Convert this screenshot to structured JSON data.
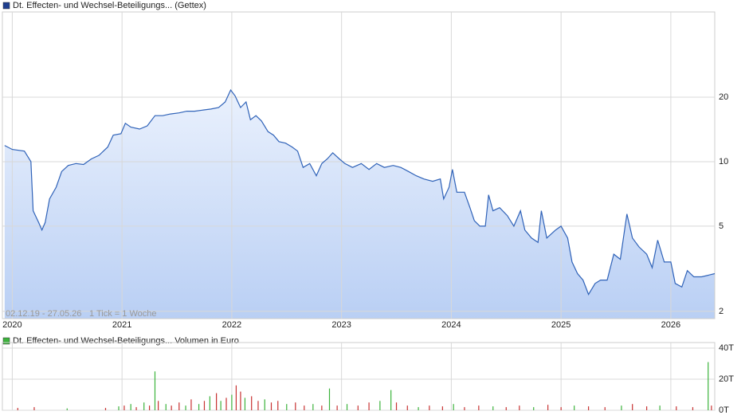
{
  "chart_data": [
    {
      "type": "line",
      "title": "Dt. Effecten- und Wechsel-Beteiligungs... (Gettex)",
      "legend_color": "#1f3f8f",
      "annotations": [
        "02.12.19 - 27.05.26",
        "1 Tick = 1 Woche"
      ],
      "color": "#2f62b8",
      "log_scale": true,
      "grid": true,
      "xlim": [
        2019.91,
        2026.4
      ],
      "xticks": [
        2020,
        2021,
        2022,
        2023,
        2024,
        2025,
        2026
      ],
      "ylim": [
        1.85,
        50
      ],
      "yticks": [
        2,
        5,
        10,
        20
      ],
      "x": [
        2019.93,
        2020.0,
        2020.11,
        2020.17,
        2020.19,
        2020.24,
        2020.27,
        2020.3,
        2020.34,
        2020.4,
        2020.45,
        2020.51,
        2020.58,
        2020.65,
        2020.72,
        2020.79,
        2020.87,
        2020.92,
        2020.99,
        2021.03,
        2021.08,
        2021.16,
        2021.23,
        2021.3,
        2021.37,
        2021.44,
        2021.52,
        2021.59,
        2021.66,
        2021.73,
        2021.81,
        2021.88,
        2021.94,
        2021.99,
        2022.03,
        2022.08,
        2022.13,
        2022.17,
        2022.22,
        2022.27,
        2022.33,
        2022.38,
        2022.43,
        2022.49,
        2022.55,
        2022.6,
        2022.65,
        2022.71,
        2022.77,
        2022.82,
        2022.87,
        2022.92,
        2022.98,
        2023.03,
        2023.1,
        2023.18,
        2023.25,
        2023.32,
        2023.39,
        2023.47,
        2023.54,
        2023.61,
        2023.68,
        2023.75,
        2023.83,
        2023.9,
        2023.93,
        2023.98,
        2024.01,
        2024.05,
        2024.12,
        2024.17,
        2024.21,
        2024.26,
        2024.31,
        2024.34,
        2024.38,
        2024.44,
        2024.51,
        2024.57,
        2024.63,
        2024.67,
        2024.73,
        2024.79,
        2024.82,
        2024.87,
        2024.95,
        2025.0,
        2025.06,
        2025.1,
        2025.15,
        2025.2,
        2025.25,
        2025.31,
        2025.36,
        2025.42,
        2025.48,
        2025.54,
        2025.6,
        2025.65,
        2025.71,
        2025.78,
        2025.83,
        2025.88,
        2025.94,
        2026.0,
        2026.04,
        2026.1,
        2026.15,
        2026.21,
        2026.28,
        2026.4
      ],
      "values": [
        11.9,
        11.4,
        11.2,
        10.0,
        5.9,
        5.2,
        4.8,
        5.2,
        6.7,
        7.6,
        9.0,
        9.6,
        9.8,
        9.7,
        10.3,
        10.7,
        11.7,
        13.3,
        13.5,
        15.1,
        14.5,
        14.2,
        14.7,
        16.4,
        16.4,
        16.7,
        16.9,
        17.2,
        17.2,
        17.4,
        17.6,
        17.9,
        19.0,
        21.6,
        20.3,
        17.9,
        19.0,
        15.7,
        16.4,
        15.5,
        13.8,
        13.3,
        12.4,
        12.2,
        11.7,
        11.2,
        9.4,
        9.8,
        8.6,
        9.8,
        10.3,
        11.0,
        10.3,
        9.8,
        9.4,
        9.8,
        9.2,
        9.8,
        9.4,
        9.6,
        9.4,
        9.0,
        8.6,
        8.3,
        8.1,
        8.3,
        6.7,
        7.6,
        9.2,
        7.2,
        7.2,
        6.1,
        5.3,
        5.0,
        5.0,
        7.0,
        5.9,
        6.1,
        5.6,
        5.0,
        5.9,
        4.8,
        4.4,
        4.2,
        5.9,
        4.4,
        4.8,
        5.0,
        4.4,
        3.4,
        3.0,
        2.8,
        2.4,
        2.7,
        2.8,
        2.8,
        3.7,
        3.5,
        5.7,
        4.4,
        4.0,
        3.7,
        3.2,
        4.3,
        3.4,
        3.4,
        2.7,
        2.6,
        3.1,
        2.9,
        2.9,
        3.0
      ]
    },
    {
      "type": "bar",
      "title": "Dt. Effecten- und Wechsel-Beteiligungs... Volumen in Euro",
      "legend_color": "#3cb33c",
      "grid": true,
      "xlim": [
        2019.91,
        2026.4
      ],
      "xticks": [
        2020,
        2021,
        2022,
        2023,
        2024,
        2025,
        2026
      ],
      "ylim": [
        0,
        43600
      ],
      "yticks": [
        {
          "value": 0,
          "label": "0T"
        },
        {
          "value": 20000,
          "label": "20T"
        },
        {
          "value": 40000,
          "label": "40T"
        }
      ],
      "x": [
        2020.05,
        2020.2,
        2020.5,
        2020.85,
        2020.97,
        2021.02,
        2021.08,
        2021.13,
        2021.2,
        2021.25,
        2021.3,
        2021.33,
        2021.4,
        2021.45,
        2021.52,
        2021.58,
        2021.63,
        2021.7,
        2021.75,
        2021.8,
        2021.86,
        2021.9,
        2021.95,
        2022.0,
        2022.04,
        2022.08,
        2022.12,
        2022.18,
        2022.24,
        2022.3,
        2022.36,
        2022.42,
        2022.5,
        2022.58,
        2022.66,
        2022.74,
        2022.82,
        2022.89,
        2022.96,
        2023.05,
        2023.15,
        2023.25,
        2023.35,
        2023.45,
        2023.5,
        2023.6,
        2023.7,
        2023.8,
        2023.92,
        2024.02,
        2024.12,
        2024.25,
        2024.38,
        2024.5,
        2024.62,
        2024.75,
        2024.88,
        2025.0,
        2025.12,
        2025.25,
        2025.4,
        2025.55,
        2025.65,
        2025.78,
        2025.9,
        2026.05,
        2026.2,
        2026.34,
        2026.37
      ],
      "values": [
        1500,
        2000,
        1200,
        1500,
        2500,
        3000,
        4000,
        2000,
        5000,
        3000,
        25000,
        6000,
        4000,
        3000,
        5000,
        3000,
        7000,
        4000,
        6000,
        9000,
        11000,
        6000,
        8000,
        10000,
        16000,
        12000,
        8000,
        9000,
        6000,
        7000,
        5000,
        6000,
        4000,
        5000,
        3000,
        4000,
        3000,
        14000,
        3000,
        4000,
        3000,
        5000,
        6000,
        13000,
        5000,
        3000,
        2000,
        3000,
        2500,
        4000,
        2000,
        3000,
        2500,
        2000,
        3000,
        2000,
        3500,
        2000,
        3000,
        2500,
        2000,
        3000,
        4000,
        2500,
        3000,
        2500,
        2000,
        31000,
        3000
      ],
      "colors": [
        "#c83232",
        "#c83232",
        "#3cb33c",
        "#c83232",
        "#3cb33c",
        "#c83232",
        "#3cb33c",
        "#c83232",
        "#3cb33c",
        "#c83232",
        "#3cb33c",
        "#c83232",
        "#3cb33c",
        "#c83232",
        "#c83232",
        "#3cb33c",
        "#c83232",
        "#3cb33c",
        "#c83232",
        "#3cb33c",
        "#c83232",
        "#3cb33c",
        "#c83232",
        "#3cb33c",
        "#c83232",
        "#c83232",
        "#3cb33c",
        "#c83232",
        "#c83232",
        "#3cb33c",
        "#c83232",
        "#c83232",
        "#3cb33c",
        "#c83232",
        "#c83232",
        "#3cb33c",
        "#c83232",
        "#3cb33c",
        "#c83232",
        "#3cb33c",
        "#c83232",
        "#c83232",
        "#3cb33c",
        "#3cb33c",
        "#c83232",
        "#c83232",
        "#3cb33c",
        "#c83232",
        "#c83232",
        "#3cb33c",
        "#c83232",
        "#c83232",
        "#3cb33c",
        "#c83232",
        "#c83232",
        "#3cb33c",
        "#c83232",
        "#c83232",
        "#3cb33c",
        "#c83232",
        "#c83232",
        "#3cb33c",
        "#c83232",
        "#c83232",
        "#3cb33c",
        "#c83232",
        "#c83232",
        "#3cb33c",
        "#c83232"
      ]
    }
  ]
}
